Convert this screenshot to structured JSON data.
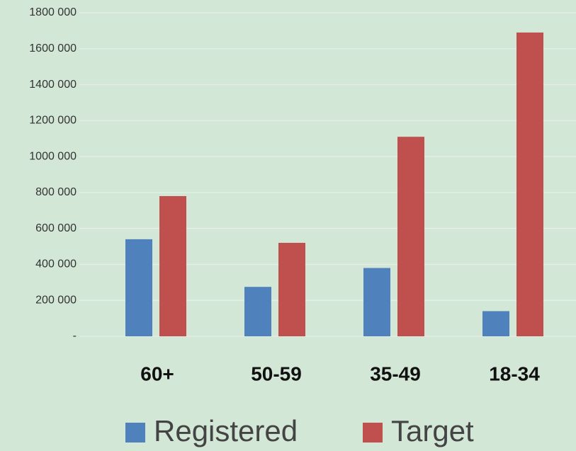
{
  "chart_data": {
    "type": "bar",
    "categories": [
      "60+",
      "50-59",
      "35-49",
      "18-34"
    ],
    "series": [
      {
        "name": "Registered",
        "color": "#4f81bd",
        "values": [
          540000,
          275000,
          380000,
          140000
        ]
      },
      {
        "name": "Target",
        "color": "#c0504d",
        "values": [
          780000,
          520000,
          1110000,
          1690000
        ]
      }
    ],
    "ylim": [
      0,
      1800000
    ],
    "yticks": [
      {
        "value": 0,
        "label": "-"
      },
      {
        "value": 200000,
        "label": "200 000"
      },
      {
        "value": 400000,
        "label": "400 000"
      },
      {
        "value": 600000,
        "label": "600 000"
      },
      {
        "value": 800000,
        "label": "800 000"
      },
      {
        "value": 1000000,
        "label": "1000 000"
      },
      {
        "value": 1200000,
        "label": "1200 000"
      },
      {
        "value": 1400000,
        "label": "1400 000"
      },
      {
        "value": 1600000,
        "label": "1600 000"
      },
      {
        "value": 1800000,
        "label": "1800 000"
      }
    ],
    "grid": true,
    "legend": "bottom"
  }
}
